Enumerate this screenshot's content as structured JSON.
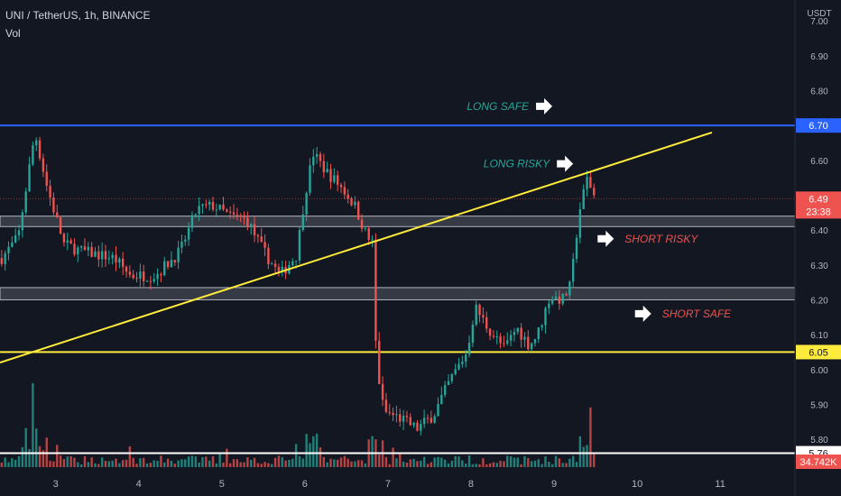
{
  "header": {
    "symbol_line": "UNI / TetherUS, 1h, BINANCE",
    "vol_label": "Vol"
  },
  "chart_data": {
    "type": "candlestick",
    "y_unit": "USDT",
    "ylim": [
      5.72,
      7.06
    ],
    "y_ticks": [
      "7.00",
      "6.90",
      "6.80",
      "6.60",
      "6.40",
      "6.30",
      "6.20",
      "6.10",
      "6.00",
      "5.90",
      "5.80"
    ],
    "x_ticks": [
      {
        "label": "3",
        "day": 3
      },
      {
        "label": "4",
        "day": 4
      },
      {
        "label": "5",
        "day": 5
      },
      {
        "label": "6",
        "day": 6
      },
      {
        "label": "7",
        "day": 7
      },
      {
        "label": "8",
        "day": 8
      },
      {
        "label": "9",
        "day": 9
      },
      {
        "label": "10",
        "day": 10
      },
      {
        "label": "11",
        "day": 11
      }
    ],
    "xlim_day": [
      2.33,
      11.9
    ],
    "price_path": [
      [
        2.35,
        6.32
      ],
      [
        2.55,
        6.38
      ],
      [
        2.75,
        6.68
      ],
      [
        2.9,
        6.52
      ],
      [
        3.1,
        6.36
      ],
      [
        3.3,
        6.34
      ],
      [
        3.5,
        6.33
      ],
      [
        3.7,
        6.32
      ],
      [
        3.9,
        6.27
      ],
      [
        4.2,
        6.27
      ],
      [
        4.5,
        6.34
      ],
      [
        4.7,
        6.46
      ],
      [
        4.9,
        6.47
      ],
      [
        5.1,
        6.44
      ],
      [
        5.3,
        6.43
      ],
      [
        5.5,
        6.34
      ],
      [
        5.7,
        6.27
      ],
      [
        5.9,
        6.33
      ],
      [
        6.0,
        6.5
      ],
      [
        6.1,
        6.62
      ],
      [
        6.25,
        6.57
      ],
      [
        6.45,
        6.52
      ],
      [
        6.6,
        6.47
      ],
      [
        6.75,
        6.38
      ],
      [
        6.82,
        6.36
      ],
      [
        6.86,
        6.02
      ],
      [
        6.95,
        5.88
      ],
      [
        7.15,
        5.86
      ],
      [
        7.35,
        5.83
      ],
      [
        7.55,
        5.87
      ],
      [
        7.75,
        5.97
      ],
      [
        7.95,
        6.05
      ],
      [
        8.05,
        6.18
      ],
      [
        8.2,
        6.12
      ],
      [
        8.4,
        6.06
      ],
      [
        8.55,
        6.12
      ],
      [
        8.7,
        6.07
      ],
      [
        8.8,
        6.1
      ],
      [
        8.95,
        6.21
      ],
      [
        9.1,
        6.2
      ],
      [
        9.2,
        6.24
      ],
      [
        9.3,
        6.45
      ],
      [
        9.4,
        6.55
      ],
      [
        9.48,
        6.5
      ]
    ],
    "last_price": "6.49",
    "countdown": "23:38",
    "last_volume": "34.742K",
    "horizontal_levels": [
      {
        "price": 6.7,
        "label": "6.70",
        "color": "#2962ff"
      },
      {
        "price": 6.05,
        "label": "6.05",
        "color": "#ffeb3b"
      },
      {
        "price": 5.76,
        "label": "5.76",
        "color": "#ffffff"
      }
    ],
    "zones": [
      {
        "top": 6.44,
        "bottom": 6.41
      },
      {
        "top": 6.235,
        "bottom": 6.2
      }
    ],
    "trendline": {
      "from": [
        2.33,
        6.02
      ],
      "to": [
        10.9,
        6.68
      ],
      "color": "#ffeb3b"
    },
    "annotations": [
      {
        "text": "LONG SAFE",
        "color": "#26a69a",
        "price": 6.755,
        "day": 7.95,
        "arrow": "right"
      },
      {
        "text": "LONG RISKY",
        "color": "#26a69a",
        "price": 6.59,
        "day": 8.15,
        "arrow": "right"
      },
      {
        "text": "SHORT RISKY",
        "color": "#ef5350",
        "price": 6.375,
        "day": 9.85,
        "arrow": "right-before"
      },
      {
        "text": "SHORT SAFE",
        "color": "#ef5350",
        "price": 6.16,
        "day": 10.3,
        "arrow": "right-before"
      }
    ],
    "colors": {
      "up": "#26a69a",
      "down": "#ef5350",
      "volume_up": "#26a69a",
      "volume_down": "#ef5350"
    },
    "grid": false
  }
}
